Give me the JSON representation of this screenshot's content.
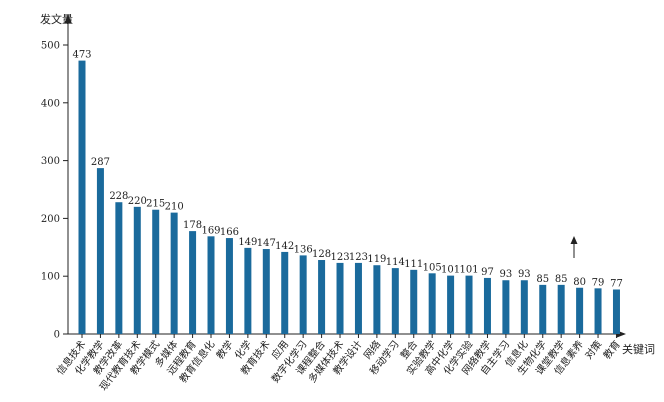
{
  "chart_data": {
    "type": "bar",
    "title": "",
    "ylabel": "发文量",
    "xlabel": "关键词",
    "ylim": [
      0,
      500
    ],
    "yticks": [
      0,
      100,
      200,
      300,
      400,
      500
    ],
    "grid": false,
    "categories": [
      "信息技术",
      "化学教学",
      "教学改革",
      "现代教育技术",
      "教学模式",
      "多媒体",
      "远程教育",
      "教育信息化",
      "教学",
      "化学",
      "教育技术",
      "应用",
      "数字化学习",
      "课程整合",
      "多媒体技术",
      "教学设计",
      "网络",
      "移动学习",
      "整合",
      "实验教学",
      "高中化学",
      "化学实验",
      "网络教学",
      "自主学习",
      "信息化",
      "生物化学",
      "课堂教学",
      "信息素养",
      "对策",
      "教育"
    ],
    "values": [
      473,
      287,
      228,
      220,
      215,
      210,
      178,
      169,
      166,
      149,
      147,
      142,
      136,
      128,
      123,
      123,
      119,
      114,
      111,
      105,
      101,
      101,
      97,
      93,
      93,
      85,
      85,
      80,
      79,
      77
    ]
  }
}
